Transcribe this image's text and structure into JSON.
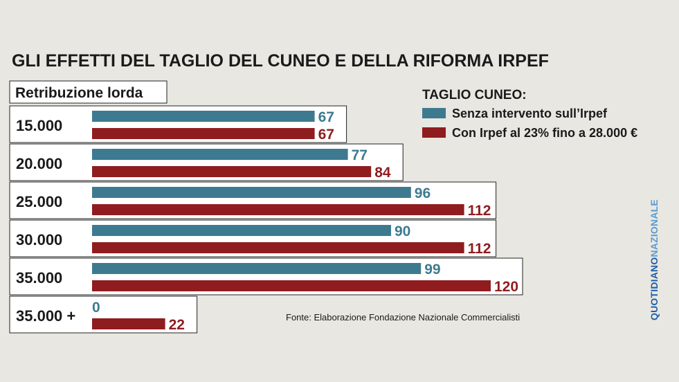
{
  "chart_data": {
    "type": "bar",
    "orientation": "horizontal",
    "title": "GLI EFFETTI DEL TAGLIO DEL CUNEO E DELLA RIFORMA IRPEF",
    "ylabel": "Retribuzione lorda",
    "categories": [
      "15.000",
      "20.000",
      "25.000",
      "30.000",
      "35.000",
      "35.000 +"
    ],
    "legend_title": "TAGLIO CUNEO:",
    "legend_position": "top-right",
    "series": [
      {
        "name": "Senza intervento sull’Irpef",
        "color": "#3d7a90",
        "values": [
          67,
          77,
          96,
          90,
          99,
          0
        ]
      },
      {
        "name": "Con Irpef al 23% fino a 28.000 €",
        "color": "#8f1c1f",
        "values": [
          67,
          84,
          112,
          112,
          120,
          22
        ]
      }
    ],
    "xlim": [
      0,
      120
    ],
    "grid": false,
    "source": "Fonte: Elaborazione Fondazione Nazionale Commercialisti"
  },
  "brand": {
    "part1": "QUOTIDIANO",
    "part2": "NAZIONALE",
    "color1": "#1f5fa8",
    "color2": "#5b9bd5"
  },
  "colors": {
    "background": "#e8e7e1",
    "row_box": "#ffffff",
    "text": "#1a1a1a"
  }
}
